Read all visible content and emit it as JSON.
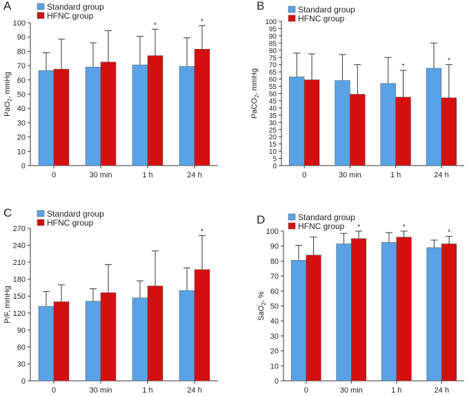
{
  "colors": {
    "standard": "#5aa2e6",
    "hfnc": "#d40f10",
    "axis": "#333333",
    "text": "#222222"
  },
  "chart_data": [
    {
      "panel": "A",
      "type": "bar",
      "ylabel_parts": [
        "PaO",
        "2",
        ", mmHg"
      ],
      "ylim": [
        0,
        100
      ],
      "yticks": [
        0,
        10,
        20,
        30,
        40,
        50,
        60,
        70,
        80,
        90,
        100
      ],
      "categories": [
        "0",
        "30 min",
        "1 h",
        "24 h"
      ],
      "series": [
        {
          "name": "Standard group",
          "values": [
            66.5,
            69,
            70.5,
            69.5
          ],
          "errors": [
            12.5,
            17,
            20,
            20
          ]
        },
        {
          "name": "HFNC group",
          "values": [
            67.5,
            72.5,
            77,
            81.5
          ],
          "errors": [
            21,
            22,
            18.5,
            16.5
          ]
        }
      ],
      "significance": [
        "",
        "",
        "*",
        "*"
      ],
      "legend_position": "top-left"
    },
    {
      "panel": "B",
      "type": "bar",
      "ylabel_parts": [
        "PaCO",
        "2",
        ", mmHg"
      ],
      "ylim": [
        0,
        100
      ],
      "yticks": [
        0,
        5,
        10,
        15,
        20,
        25,
        30,
        35,
        40,
        45,
        50,
        55,
        60,
        65,
        70,
        75,
        80,
        85,
        90,
        95,
        100
      ],
      "categories": [
        "0",
        "30 min",
        "1 h",
        "24 h"
      ],
      "series": [
        {
          "name": "Standard group",
          "values": [
            61.5,
            59,
            57,
            67.5
          ],
          "errors": [
            16.5,
            18,
            18,
            17.5
          ]
        },
        {
          "name": "HFNC group",
          "values": [
            59.5,
            49.5,
            47.5,
            47
          ],
          "errors": [
            18,
            20.5,
            18.5,
            23
          ]
        }
      ],
      "significance": [
        "",
        "",
        "*",
        "*"
      ],
      "legend_position": "top-left"
    },
    {
      "panel": "C",
      "type": "bar",
      "ylabel_parts": [
        "P/F, mmHg"
      ],
      "ylim": [
        0,
        270
      ],
      "yticks": [
        0,
        30,
        60,
        90,
        120,
        150,
        180,
        210,
        240,
        270
      ],
      "categories": [
        "0",
        "30 min",
        "1 h",
        "24 h"
      ],
      "series": [
        {
          "name": "Standard group",
          "values": [
            132,
            141,
            147,
            160
          ],
          "errors": [
            26,
            22,
            30,
            40
          ]
        },
        {
          "name": "HFNC group",
          "values": [
            140,
            156,
            168,
            197
          ],
          "errors": [
            30,
            50,
            62,
            60
          ]
        }
      ],
      "significance": [
        "",
        "",
        "",
        "*"
      ],
      "legend_position": "top-left"
    },
    {
      "panel": "D",
      "type": "bar",
      "ylabel_parts": [
        "SaO",
        "2",
        ", %"
      ],
      "ylim": [
        0,
        100
      ],
      "yticks": [
        0,
        10,
        20,
        30,
        40,
        50,
        60,
        70,
        80,
        90,
        100
      ],
      "categories": [
        "0",
        "30 min",
        "1 h",
        "24 h"
      ],
      "series": [
        {
          "name": "Standard group",
          "values": [
            80.5,
            91.5,
            92.5,
            89
          ],
          "errors": [
            10,
            7,
            6.5,
            5
          ]
        },
        {
          "name": "HFNC group",
          "values": [
            84,
            95,
            96,
            91.5
          ],
          "errors": [
            12,
            5,
            4,
            5
          ]
        }
      ],
      "significance": [
        "",
        "*",
        "*",
        "*"
      ],
      "legend_position": "top-left"
    }
  ]
}
